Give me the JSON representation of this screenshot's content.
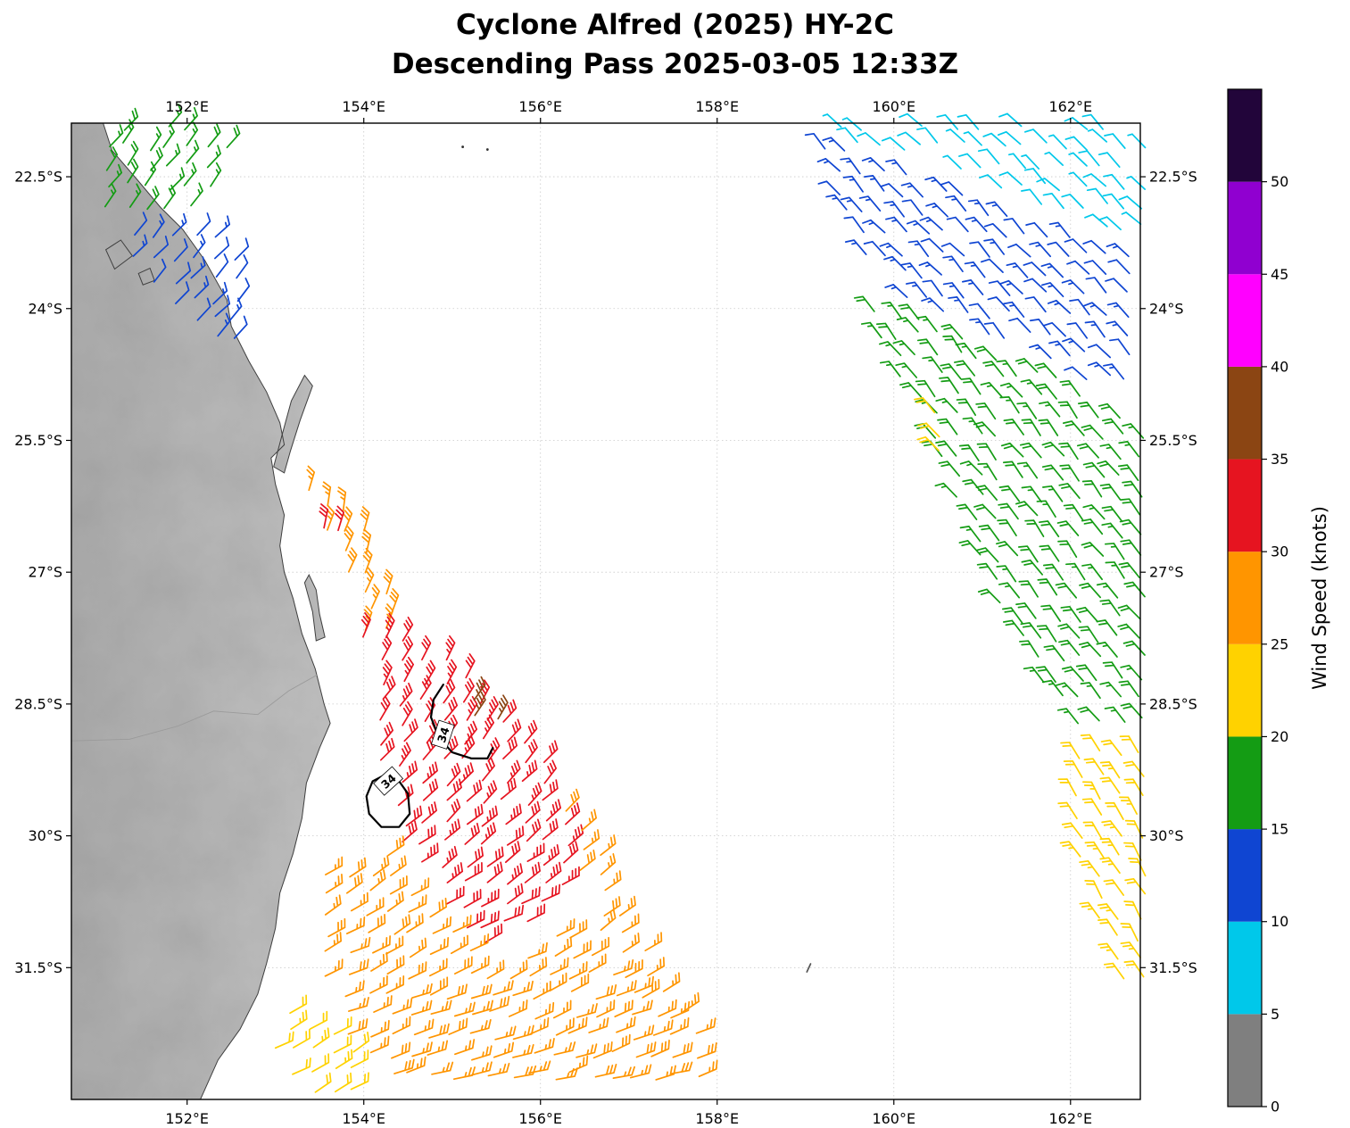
{
  "chart_data": {
    "type": "wind_barb_map",
    "title": "Cyclone Alfred (2025) HY-2C",
    "subtitle": "Descending Pass 2025-03-05 12:33Z",
    "axes": {
      "lon_ticks": [
        {
          "value": 152,
          "label": "152°E"
        },
        {
          "value": 154,
          "label": "154°E"
        },
        {
          "value": 156,
          "label": "156°E"
        },
        {
          "value": 158,
          "label": "158°E"
        },
        {
          "value": 160,
          "label": "160°E"
        },
        {
          "value": 162,
          "label": "162°E"
        }
      ],
      "lat_ticks": [
        {
          "value": -22.5,
          "label": "22.5°S"
        },
        {
          "value": -24,
          "label": "24°S"
        },
        {
          "value": -25.5,
          "label": "25.5°S"
        },
        {
          "value": -27,
          "label": "27°S"
        },
        {
          "value": -28.5,
          "label": "28.5°S"
        },
        {
          "value": -30,
          "label": "30°S"
        },
        {
          "value": -31.5,
          "label": "31.5°S"
        }
      ],
      "extent": {
        "lon_min": 150.69,
        "lon_max": 162.79,
        "lat_min": -33.0,
        "lat_max": -21.89
      },
      "grid": true
    },
    "colorbar": {
      "label": "Wind Speed (knots)",
      "min": 0,
      "max": 55,
      "tick_values": [
        0,
        5,
        10,
        15,
        20,
        25,
        30,
        35,
        40,
        45,
        50
      ],
      "segments": [
        {
          "range": [
            0,
            5
          ],
          "color": "#7f7f7f"
        },
        {
          "range": [
            5,
            10
          ],
          "color": "#00c8ea"
        },
        {
          "range": [
            10,
            15
          ],
          "color": "#0f45d2"
        },
        {
          "range": [
            15,
            20
          ],
          "color": "#149c14"
        },
        {
          "range": [
            20,
            25
          ],
          "color": "#ffd200"
        },
        {
          "range": [
            25,
            30
          ],
          "color": "#ff9500"
        },
        {
          "range": [
            30,
            35
          ],
          "color": "#e61420"
        },
        {
          "range": [
            35,
            40
          ],
          "color": "#8b4513"
        },
        {
          "range": [
            40,
            45
          ],
          "color": "#ff00ff"
        },
        {
          "range": [
            45,
            50
          ],
          "color": "#9000d0"
        },
        {
          "range": [
            50,
            55
          ],
          "color": "#22053a"
        }
      ]
    },
    "wind_regions": [
      {
        "name": "coastal-green-north",
        "color": "#149c14",
        "speed": 17,
        "angle": 38,
        "polygon": [
          [
            150.85,
            -21.92
          ],
          [
            152.62,
            -21.92
          ],
          [
            152.12,
            -23.02
          ],
          [
            151.1,
            -23.06
          ]
        ]
      },
      {
        "name": "coastal-blue-north",
        "color": "#0f45d2",
        "speed": 12,
        "angle": 42,
        "polygon": [
          [
            151.15,
            -23.1
          ],
          [
            152.25,
            -22.98
          ],
          [
            152.66,
            -23.3
          ],
          [
            152.6,
            -24.5
          ],
          [
            152.2,
            -24.5
          ],
          [
            151.42,
            -23.55
          ]
        ]
      },
      {
        "name": "swath-west-orange-north",
        "color": "#ff9500",
        "speed": 27,
        "angle": 12,
        "angle_s": 28,
        "polygon": [
          [
            153.35,
            -26.05
          ],
          [
            153.82,
            -26.12
          ],
          [
            154.42,
            -27.4
          ],
          [
            154.52,
            -28.0
          ],
          [
            154.08,
            -27.82
          ],
          [
            153.58,
            -26.68
          ]
        ]
      },
      {
        "name": "swath-west-red-patch",
        "color": "#e61420",
        "speed": 31,
        "angle": 15,
        "polygon": [
          [
            153.55,
            -26.3
          ],
          [
            153.85,
            -26.36
          ],
          [
            153.78,
            -26.74
          ],
          [
            153.5,
            -26.56
          ]
        ]
      },
      {
        "name": "cyclone-red-core",
        "color": "#e61420",
        "speed": 32,
        "angle": 22,
        "angle_s": 66,
        "polygon": [
          [
            153.98,
            -27.55
          ],
          [
            154.52,
            -27.62
          ],
          [
            155.3,
            -28.3
          ],
          [
            155.98,
            -29.0
          ],
          [
            156.32,
            -29.85
          ],
          [
            156.48,
            -30.55
          ],
          [
            155.95,
            -30.98
          ],
          [
            155.3,
            -31.28
          ],
          [
            154.82,
            -30.9
          ],
          [
            154.35,
            -29.95
          ],
          [
            154.02,
            -28.6
          ]
        ]
      },
      {
        "name": "brown-35kt-patch",
        "color": "#8b4513",
        "speed": 37,
        "angle": 30,
        "polygon": [
          [
            155.02,
            -28.42
          ],
          [
            155.58,
            -28.5
          ],
          [
            155.62,
            -28.9
          ],
          [
            155.06,
            -28.84
          ]
        ]
      },
      {
        "name": "orange-east-band",
        "color": "#ff9500",
        "speed": 27,
        "angle": 48,
        "angle_s": 60,
        "polygon": [
          [
            156.25,
            -29.5
          ],
          [
            156.75,
            -30.25
          ],
          [
            157.2,
            -31.25
          ],
          [
            157.7,
            -32.1
          ],
          [
            157.08,
            -31.95
          ],
          [
            156.55,
            -30.85
          ],
          [
            156.33,
            -30.1
          ]
        ]
      },
      {
        "name": "orange-south-band",
        "color": "#ff9500",
        "speed": 27,
        "angle": 55,
        "angle_s": 75,
        "polygon": [
          [
            153.42,
            -30.35
          ],
          [
            154.32,
            -30.2
          ],
          [
            154.95,
            -31.05
          ],
          [
            155.55,
            -31.42
          ],
          [
            156.32,
            -31.05
          ],
          [
            157.05,
            -31.65
          ],
          [
            157.95,
            -32.35
          ],
          [
            157.85,
            -32.92
          ],
          [
            154.55,
            -32.92
          ],
          [
            153.78,
            -32.3
          ],
          [
            153.38,
            -31.3
          ]
        ]
      },
      {
        "name": "yellow-southwest",
        "color": "#ffd200",
        "speed": 22,
        "angle": 60,
        "polygon": [
          [
            152.98,
            -31.98
          ],
          [
            153.6,
            -32.05
          ],
          [
            154.35,
            -32.92
          ],
          [
            152.98,
            -32.92
          ]
        ]
      },
      {
        "name": "cyan-northeast",
        "color": "#00c8ea",
        "speed": 8,
        "angle": -45,
        "polygon": [
          [
            158.92,
            -21.92
          ],
          [
            162.85,
            -21.92
          ],
          [
            162.85,
            -23.28
          ],
          [
            161.7,
            -22.9
          ],
          [
            160.3,
            -22.3
          ],
          [
            159.35,
            -22.05
          ]
        ]
      },
      {
        "name": "blue-northeast-band",
        "color": "#0f45d2",
        "speed": 13,
        "angle": -42,
        "polygon": [
          [
            158.97,
            -22.0
          ],
          [
            159.9,
            -22.35
          ],
          [
            161.3,
            -22.92
          ],
          [
            162.85,
            -23.42
          ],
          [
            162.85,
            -25.12
          ],
          [
            161.45,
            -24.48
          ],
          [
            160.1,
            -23.85
          ],
          [
            159.52,
            -23.2
          ]
        ]
      },
      {
        "name": "green-east-band",
        "color": "#149c14",
        "speed": 18,
        "angle": -38,
        "polygon": [
          [
            159.58,
            -23.85
          ],
          [
            160.35,
            -24.05
          ],
          [
            161.55,
            -24.62
          ],
          [
            162.85,
            -25.25
          ],
          [
            162.85,
            -28.88
          ],
          [
            161.95,
            -28.82
          ],
          [
            161.25,
            -27.65
          ],
          [
            160.82,
            -26.6
          ],
          [
            160.35,
            -25.35
          ]
        ]
      },
      {
        "name": "yellow-mid-strip",
        "color": "#ffd200",
        "speed": 22,
        "angle": -38,
        "polygon": [
          [
            160.28,
            -24.95
          ],
          [
            160.56,
            -25.05
          ],
          [
            160.72,
            -25.9
          ],
          [
            160.46,
            -25.82
          ]
        ]
      },
      {
        "name": "yellow-southeast-band",
        "color": "#ffd200",
        "speed": 22,
        "angle": -32,
        "polygon": [
          [
            161.95,
            -28.85
          ],
          [
            162.88,
            -28.98
          ],
          [
            162.88,
            -31.82
          ],
          [
            162.5,
            -31.62
          ],
          [
            162.05,
            -30.35
          ],
          [
            161.88,
            -29.4
          ]
        ]
      }
    ],
    "extra_barbs": [
      {
        "lon": 159.02,
        "lat": -31.54,
        "speed": 3,
        "color": "#555555",
        "angle": 25
      }
    ],
    "dots": [
      {
        "lon": 155.12,
        "lat": -22.16
      },
      {
        "lon": 155.4,
        "lat": -22.19
      }
    ],
    "contours": [
      {
        "label": "34",
        "closed": false,
        "points": [
          [
            154.9,
            -28.28
          ],
          [
            154.79,
            -28.45
          ],
          [
            154.76,
            -28.65
          ],
          [
            154.85,
            -28.88
          ],
          [
            155.0,
            -29.05
          ],
          [
            155.22,
            -29.12
          ],
          [
            155.4,
            -29.12
          ],
          [
            155.46,
            -29.0
          ]
        ],
        "label_lon": 154.9,
        "label_lat": -28.85,
        "label_rot": -72
      },
      {
        "label": "34",
        "closed": true,
        "points": [
          [
            154.25,
            -29.3
          ],
          [
            154.1,
            -29.38
          ],
          [
            154.03,
            -29.55
          ],
          [
            154.06,
            -29.75
          ],
          [
            154.2,
            -29.9
          ],
          [
            154.4,
            -29.9
          ],
          [
            154.52,
            -29.75
          ],
          [
            154.5,
            -29.52
          ],
          [
            154.38,
            -29.35
          ]
        ],
        "label_lon": 154.28,
        "label_lat": -29.38,
        "label_rot": -42
      }
    ],
    "map": {
      "land_fill": "#d6d6d6",
      "coast_color": "#3f3f3f",
      "land_polygons": [
        [
          [
            151.05,
            -21.89
          ],
          [
            151.15,
            -22.2
          ],
          [
            151.45,
            -22.55
          ],
          [
            151.7,
            -22.85
          ],
          [
            151.95,
            -23.1
          ],
          [
            152.2,
            -23.45
          ],
          [
            152.45,
            -23.9
          ],
          [
            152.5,
            -24.2
          ],
          [
            152.7,
            -24.6
          ],
          [
            152.9,
            -24.95
          ],
          [
            153.05,
            -25.3
          ],
          [
            153.1,
            -25.55
          ],
          [
            152.95,
            -25.7
          ],
          [
            153.0,
            -26.0
          ],
          [
            153.1,
            -26.35
          ],
          [
            153.05,
            -26.7
          ],
          [
            153.1,
            -27.0
          ],
          [
            153.2,
            -27.3
          ],
          [
            153.3,
            -27.7
          ],
          [
            153.45,
            -28.1
          ],
          [
            153.55,
            -28.5
          ],
          [
            153.62,
            -28.72
          ],
          [
            153.5,
            -29.0
          ],
          [
            153.35,
            -29.4
          ],
          [
            153.3,
            -29.8
          ],
          [
            153.2,
            -30.2
          ],
          [
            153.05,
            -30.65
          ],
          [
            153.0,
            -31.05
          ],
          [
            152.9,
            -31.45
          ],
          [
            152.8,
            -31.8
          ],
          [
            152.6,
            -32.2
          ],
          [
            152.35,
            -32.55
          ],
          [
            152.15,
            -33.0
          ],
          [
            150.69,
            -33.0
          ],
          [
            150.69,
            -21.89
          ]
        ]
      ],
      "island_polygons": [
        [
          [
            152.98,
            -25.8
          ],
          [
            153.08,
            -25.42
          ],
          [
            153.18,
            -25.05
          ],
          [
            153.33,
            -24.76
          ],
          [
            153.42,
            -24.88
          ],
          [
            153.28,
            -25.27
          ],
          [
            153.17,
            -25.62
          ],
          [
            153.1,
            -25.87
          ]
        ],
        [
          [
            151.08,
            -23.33
          ],
          [
            151.25,
            -23.22
          ],
          [
            151.38,
            -23.4
          ],
          [
            151.18,
            -23.55
          ]
        ],
        [
          [
            151.45,
            -23.6
          ],
          [
            151.58,
            -23.54
          ],
          [
            151.63,
            -23.68
          ],
          [
            151.5,
            -23.73
          ]
        ],
        [
          [
            153.38,
            -27.03
          ],
          [
            153.46,
            -27.2
          ],
          [
            153.5,
            -27.48
          ],
          [
            153.56,
            -27.74
          ],
          [
            153.46,
            -27.78
          ],
          [
            153.42,
            -27.45
          ],
          [
            153.33,
            -27.12
          ]
        ]
      ],
      "border_lines": [
        [
          [
            150.69,
            -28.92
          ],
          [
            151.35,
            -28.9
          ],
          [
            151.9,
            -28.75
          ],
          [
            152.3,
            -28.58
          ],
          [
            152.8,
            -28.62
          ],
          [
            153.15,
            -28.35
          ],
          [
            153.47,
            -28.17
          ]
        ]
      ]
    }
  }
}
